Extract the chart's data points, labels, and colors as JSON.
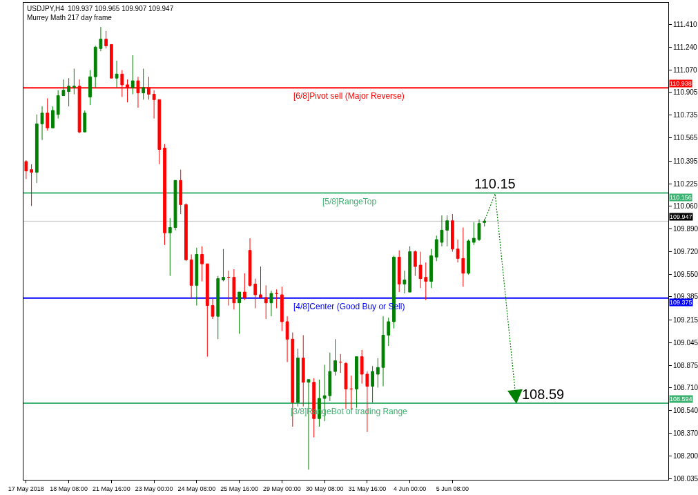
{
  "chart_data": {
    "type": "candlestick",
    "title": "USDJPY,H4  109.937 109.965 109.907 109.947",
    "subtitle": "Murrey Math 217 day frame",
    "categories": [
      "17 May 2018",
      null,
      null,
      null,
      null,
      null,
      null,
      null,
      "18 May 08:00",
      null,
      null,
      null,
      null,
      null,
      null,
      null,
      "21 May 16:00",
      null,
      null,
      null,
      null,
      null,
      null,
      null,
      "23 May 00:00",
      null,
      null,
      null,
      null,
      null,
      null,
      null,
      "24 May 08:00",
      null,
      null,
      null,
      null,
      null,
      null,
      null,
      "25 May 16:00",
      null,
      null,
      null,
      null,
      null,
      null,
      null,
      "29 May 00:00",
      null,
      null,
      null,
      null,
      null,
      null,
      null,
      "30 May 08:00",
      null,
      null,
      null,
      null,
      null,
      null,
      null,
      "31 May 16:00",
      null,
      null,
      null,
      null,
      null,
      null,
      null,
      "4 Jun 00:00",
      null,
      null,
      null,
      null,
      null,
      null,
      null,
      "5 Jun 08:00",
      null,
      null,
      null,
      null,
      null,
      null,
      null,
      null,
      null,
      null,
      null,
      null,
      null,
      null,
      null,
      null,
      null,
      null,
      null,
      null,
      null,
      null,
      null,
      null,
      null,
      null,
      null,
      null,
      null,
      null,
      null,
      null,
      null,
      null,
      null,
      null,
      null,
      null,
      null,
      null
    ],
    "ohlc": [
      [
        110.39,
        110.4,
        110.26,
        110.32
      ],
      [
        110.33,
        110.37,
        110.06,
        110.31
      ],
      [
        110.31,
        110.74,
        110.23,
        110.67
      ],
      [
        110.67,
        110.8,
        110.55,
        110.75
      ],
      [
        110.75,
        110.86,
        110.62,
        110.64
      ],
      [
        110.64,
        110.8,
        110.64,
        110.77
      ],
      [
        110.74,
        110.92,
        110.71,
        110.88
      ],
      [
        110.88,
        111.0,
        110.88,
        110.92
      ],
      [
        110.91,
        111.01,
        110.8,
        110.95
      ],
      [
        110.94,
        111.08,
        110.89,
        110.95
      ],
      [
        110.95,
        111.0,
        110.6,
        110.61
      ],
      [
        110.61,
        110.77,
        110.61,
        110.75
      ],
      [
        110.87,
        111.07,
        110.81,
        111.02
      ],
      [
        111.02,
        111.25,
        110.94,
        111.24
      ],
      [
        111.23,
        111.39,
        111.21,
        111.3
      ],
      [
        111.3,
        111.36,
        111.23,
        111.25
      ],
      [
        111.26,
        111.26,
        111.01,
        111.01
      ],
      [
        111.01,
        111.14,
        110.94,
        111.04
      ],
      [
        111.04,
        111.07,
        110.87,
        110.96
      ],
      [
        110.96,
        111.0,
        110.83,
        110.94
      ],
      [
        110.94,
        111.18,
        110.89,
        110.99
      ],
      [
        110.99,
        111.02,
        110.79,
        110.9
      ],
      [
        110.9,
        111.08,
        110.85,
        110.94
      ],
      [
        110.94,
        111.02,
        110.85,
        110.89
      ],
      [
        110.89,
        110.92,
        110.71,
        110.85
      ],
      [
        110.85,
        110.85,
        110.37,
        110.48
      ],
      [
        110.49,
        110.52,
        109.77,
        109.86
      ],
      [
        109.86,
        109.97,
        109.54,
        109.9
      ],
      [
        109.9,
        110.25,
        109.88,
        110.25
      ],
      [
        110.25,
        110.33,
        110.0,
        110.07
      ],
      [
        110.07,
        110.08,
        109.65,
        109.66
      ],
      [
        109.66,
        109.7,
        109.37,
        109.47
      ],
      [
        109.47,
        109.75,
        109.32,
        109.7
      ],
      [
        109.7,
        109.76,
        109.5,
        109.63
      ],
      [
        109.63,
        109.63,
        108.94,
        109.32
      ],
      [
        109.32,
        109.37,
        109.22,
        109.24
      ],
      [
        109.24,
        109.54,
        109.07,
        109.52
      ],
      [
        109.51,
        109.74,
        109.5,
        109.53
      ],
      [
        109.53,
        109.58,
        109.32,
        109.53
      ],
      [
        109.53,
        109.59,
        109.29,
        109.34
      ],
      [
        109.34,
        109.42,
        109.11,
        109.42
      ],
      [
        109.42,
        109.56,
        109.36,
        109.38
      ],
      [
        109.73,
        109.82,
        109.46,
        109.47
      ],
      [
        109.48,
        109.52,
        109.3,
        109.4
      ],
      [
        109.4,
        109.61,
        109.38,
        109.38
      ],
      [
        109.38,
        109.47,
        109.22,
        109.34
      ],
      [
        109.34,
        109.43,
        109.24,
        109.41
      ],
      [
        109.41,
        109.44,
        109.3,
        109.41
      ],
      [
        109.4,
        109.46,
        109.13,
        109.2
      ],
      [
        109.2,
        109.24,
        108.9,
        109.07
      ],
      [
        109.07,
        109.12,
        108.42,
        108.6
      ],
      [
        108.6,
        109.0,
        108.57,
        108.93
      ],
      [
        108.93,
        109.1,
        108.57,
        108.75
      ],
      [
        108.75,
        108.77,
        108.1,
        108.77
      ],
      [
        108.75,
        108.78,
        108.34,
        108.48
      ],
      [
        108.48,
        108.77,
        108.42,
        108.63
      ],
      [
        108.63,
        108.88,
        108.46,
        108.65
      ],
      [
        108.65,
        108.97,
        108.61,
        108.83
      ],
      [
        108.83,
        109.07,
        108.8,
        108.91
      ],
      [
        108.9,
        108.96,
        108.82,
        108.9
      ],
      [
        108.89,
        108.9,
        108.55,
        108.7
      ],
      [
        108.7,
        108.8,
        108.55,
        108.7
      ],
      [
        108.7,
        108.94,
        108.56,
        108.94
      ],
      [
        108.94,
        108.99,
        108.74,
        108.81
      ],
      [
        108.81,
        108.83,
        108.38,
        108.72
      ],
      [
        108.72,
        108.87,
        108.6,
        108.83
      ],
      [
        108.81,
        108.93,
        108.71,
        108.86
      ],
      [
        108.86,
        109.24,
        108.72,
        109.1
      ],
      [
        109.1,
        109.23,
        109.02,
        109.2
      ],
      [
        109.2,
        109.69,
        109.15,
        109.68
      ],
      [
        109.68,
        109.73,
        109.42,
        109.48
      ],
      [
        109.48,
        109.58,
        109.41,
        109.51
      ],
      [
        109.42,
        109.76,
        109.42,
        109.72
      ],
      [
        109.72,
        109.73,
        109.54,
        109.61
      ],
      [
        109.62,
        109.72,
        109.45,
        109.52
      ],
      [
        109.53,
        109.64,
        109.36,
        109.5
      ],
      [
        109.5,
        109.74,
        109.45,
        109.69
      ],
      [
        109.68,
        109.84,
        109.65,
        109.81
      ],
      [
        109.79,
        109.99,
        109.76,
        109.88
      ],
      [
        109.88,
        109.99,
        109.76,
        109.95
      ],
      [
        109.95,
        110.0,
        109.72,
        109.74
      ],
      [
        109.74,
        109.81,
        109.64,
        109.67
      ],
      [
        109.67,
        109.9,
        109.46,
        109.56
      ],
      [
        109.56,
        109.81,
        109.55,
        109.8
      ],
      [
        109.79,
        109.94,
        109.77,
        109.82
      ],
      [
        109.81,
        109.96,
        109.8,
        109.93
      ],
      [
        109.937,
        109.965,
        109.907,
        109.947
      ],
      null,
      null,
      null,
      null,
      null,
      null,
      null,
      null,
      null,
      null,
      null,
      null,
      null,
      null,
      null,
      null,
      null,
      null,
      null,
      null,
      null,
      null,
      null,
      null,
      null,
      null,
      null,
      null,
      null,
      null,
      null,
      null,
      null,
      null
    ],
    "colors": [
      "#ff0000",
      "#ff0000",
      "#008000",
      "#008000",
      "#ff0000",
      "#008000",
      "#008000",
      "#008000",
      "#008000",
      "#008000",
      "#ff0000",
      "#008000",
      "#008000",
      "#008000",
      "#008000",
      "#ff0000",
      "#ff0000",
      "#008000",
      "#ff0000",
      "#ff0000",
      "#008000",
      "#ff0000",
      "#008000",
      "#ff0000",
      "#ff0000",
      "#ff0000",
      "#ff0000",
      "#008000",
      "#008000",
      "#ff0000",
      "#ff0000",
      "#ff0000",
      "#008000",
      "#ff0000",
      "#ff0000",
      "#ff0000",
      "#008000",
      "#008000",
      "#ff0000",
      "#ff0000",
      "#008000",
      "#ff0000",
      "#ff0000",
      "#ff0000",
      "#ff0000",
      "#ff0000",
      "#008000",
      "#ff0000",
      "#ff0000",
      "#ff0000",
      "#ff0000",
      "#008000",
      "#ff0000",
      "#008000",
      "#ff0000",
      "#008000",
      "#008000",
      "#008000",
      "#008000",
      "#ff0000",
      "#ff0000",
      "#ff0000",
      "#008000",
      "#ff0000",
      "#ff0000",
      "#008000",
      "#008000",
      "#008000",
      "#008000",
      "#008000",
      "#ff0000",
      "#008000",
      "#008000",
      "#ff0000",
      "#ff0000",
      "#ff0000",
      "#008000",
      "#008000",
      "#008000",
      "#008000",
      "#ff0000",
      "#ff0000",
      "#ff0000",
      "#008000",
      "#008000",
      "#008000",
      "#008000",
      null,
      null,
      null,
      null,
      null,
      null,
      null,
      null,
      null,
      null,
      null,
      null,
      null,
      null,
      null,
      null,
      null,
      null,
      null,
      null,
      null,
      null,
      null,
      null,
      null,
      null,
      null,
      null,
      null,
      null,
      null,
      null,
      null,
      null
    ],
    "ylim": [
      108.025,
      111.57
    ],
    "yticks": [
      {
        "value": 108.035,
        "label": "108.035"
      },
      {
        "value": 108.2,
        "label": "108.200"
      },
      {
        "value": 108.37,
        "label": "108.370"
      },
      {
        "value": 108.54,
        "label": "108.540"
      },
      {
        "value": 108.71,
        "label": "108.710"
      },
      108.875,
      109.045,
      109.215,
      109.385,
      {
        "value": 109.55,
        "label": "109.550"
      },
      {
        "value": 109.72,
        "label": "109.720"
      },
      {
        "value": 109.89,
        "label": "109.890"
      },
      {
        "value": 110.06,
        "label": "110.060"
      },
      110.225,
      110.395,
      110.565,
      110.735,
      110.905,
      {
        "value": 111.07,
        "label": "111.070"
      },
      {
        "value": 111.24,
        "label": "111.240"
      },
      {
        "value": 111.41,
        "label": "111.410"
      }
    ],
    "ref_lines": [
      {
        "axis": "y",
        "value": 110.938,
        "label": "[6/8]Pivot sell (Major Reverse)",
        "color": "#ff0000"
      },
      {
        "axis": "y",
        "value": 110.156,
        "label": "[5/8]RangeTop",
        "color": "#3cb371"
      },
      {
        "axis": "y",
        "value": 109.947,
        "label": null,
        "color": "#c0c0c0"
      },
      {
        "axis": "y",
        "value": 109.375,
        "label": "[4/8]Center (Good Buy or Sell)",
        "color": "#0000ff"
      },
      {
        "axis": "y",
        "value": 108.594,
        "label": "[3/8]RangeBot of trading Range",
        "color": "#3cb371"
      }
    ],
    "annotations": [
      {
        "text": "110.15",
        "y": 110.15
      },
      {
        "text": "108.59",
        "y": 108.59
      },
      "110.938",
      "110.156",
      "109.947",
      "109.375",
      "108.594"
    ],
    "grid": false
  }
}
